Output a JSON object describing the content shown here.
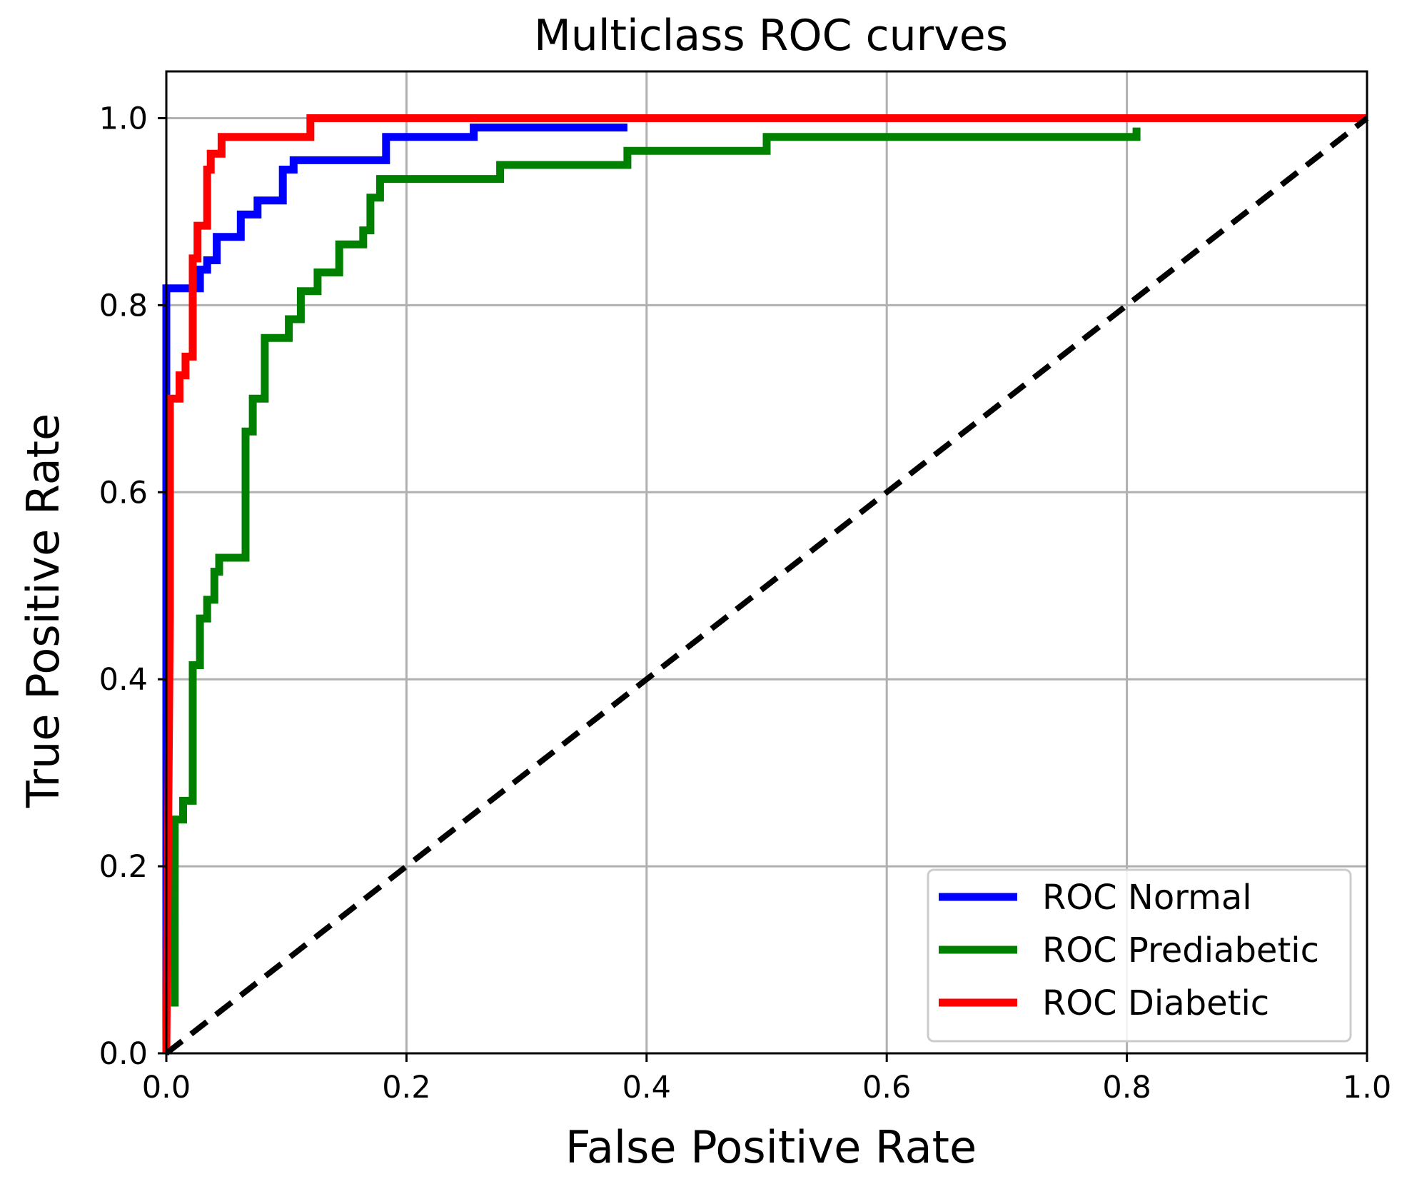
{
  "chart_data": {
    "type": "line",
    "title": "Multiclass ROC curves",
    "xlabel": "False Positive Rate",
    "ylabel": "True Positive Rate",
    "xlim": [
      0.0,
      1.0
    ],
    "ylim": [
      0.0,
      1.05
    ],
    "grid": true,
    "legend_position": "lower-right",
    "x_ticks": [
      0.0,
      0.2,
      0.4,
      0.6,
      0.8,
      1.0
    ],
    "x_tick_labels": [
      "0.0",
      "0.2",
      "0.4",
      "0.6",
      "0.8",
      "1.0"
    ],
    "y_ticks": [
      0.0,
      0.2,
      0.4,
      0.6,
      0.8,
      1.0
    ],
    "y_tick_labels": [
      "0.0",
      "0.2",
      "0.4",
      "0.6",
      "0.8",
      "1.0"
    ],
    "series": [
      {
        "name": "ROC Normal",
        "color": "#0000ff",
        "points": [
          [
            0.0,
            0.0
          ],
          [
            0.0,
            0.818
          ],
          [
            0.028,
            0.818
          ],
          [
            0.028,
            0.838
          ],
          [
            0.034,
            0.838
          ],
          [
            0.034,
            0.848
          ],
          [
            0.042,
            0.848
          ],
          [
            0.042,
            0.873
          ],
          [
            0.062,
            0.873
          ],
          [
            0.062,
            0.897
          ],
          [
            0.076,
            0.897
          ],
          [
            0.076,
            0.912
          ],
          [
            0.097,
            0.912
          ],
          [
            0.097,
            0.945
          ],
          [
            0.106,
            0.945
          ],
          [
            0.106,
            0.955
          ],
          [
            0.183,
            0.955
          ],
          [
            0.183,
            0.98
          ],
          [
            0.256,
            0.98
          ],
          [
            0.256,
            0.99
          ],
          [
            0.384,
            0.99
          ]
        ]
      },
      {
        "name": "ROC Prediabetic",
        "color": "#008000",
        "points": [
          [
            0.007,
            0.05
          ],
          [
            0.007,
            0.25
          ],
          [
            0.014,
            0.25
          ],
          [
            0.014,
            0.27
          ],
          [
            0.022,
            0.27
          ],
          [
            0.022,
            0.415
          ],
          [
            0.028,
            0.415
          ],
          [
            0.028,
            0.465
          ],
          [
            0.034,
            0.465
          ],
          [
            0.034,
            0.485
          ],
          [
            0.04,
            0.485
          ],
          [
            0.04,
            0.515
          ],
          [
            0.044,
            0.515
          ],
          [
            0.044,
            0.53
          ],
          [
            0.066,
            0.53
          ],
          [
            0.066,
            0.665
          ],
          [
            0.072,
            0.665
          ],
          [
            0.072,
            0.7
          ],
          [
            0.082,
            0.7
          ],
          [
            0.082,
            0.765
          ],
          [
            0.102,
            0.765
          ],
          [
            0.102,
            0.785
          ],
          [
            0.112,
            0.785
          ],
          [
            0.112,
            0.815
          ],
          [
            0.126,
            0.815
          ],
          [
            0.126,
            0.835
          ],
          [
            0.144,
            0.835
          ],
          [
            0.144,
            0.865
          ],
          [
            0.164,
            0.865
          ],
          [
            0.164,
            0.88
          ],
          [
            0.17,
            0.88
          ],
          [
            0.17,
            0.915
          ],
          [
            0.178,
            0.915
          ],
          [
            0.178,
            0.935
          ],
          [
            0.278,
            0.935
          ],
          [
            0.278,
            0.95
          ],
          [
            0.384,
            0.95
          ],
          [
            0.384,
            0.965
          ],
          [
            0.5,
            0.965
          ],
          [
            0.5,
            0.98
          ],
          [
            0.808,
            0.98
          ],
          [
            0.808,
            0.99
          ]
        ]
      },
      {
        "name": "ROC Diabetic",
        "color": "#ff0000",
        "points": [
          [
            0.0,
            0.0
          ],
          [
            0.003,
            0.47
          ],
          [
            0.003,
            0.7
          ],
          [
            0.011,
            0.7
          ],
          [
            0.011,
            0.725
          ],
          [
            0.016,
            0.725
          ],
          [
            0.016,
            0.745
          ],
          [
            0.022,
            0.745
          ],
          [
            0.022,
            0.85
          ],
          [
            0.026,
            0.85
          ],
          [
            0.026,
            0.885
          ],
          [
            0.034,
            0.885
          ],
          [
            0.034,
            0.945
          ],
          [
            0.037,
            0.945
          ],
          [
            0.037,
            0.962
          ],
          [
            0.046,
            0.962
          ],
          [
            0.046,
            0.98
          ],
          [
            0.12,
            0.98
          ],
          [
            0.12,
            1.0
          ],
          [
            1.0,
            1.0
          ]
        ]
      }
    ],
    "reference_line": {
      "name": "chance",
      "color": "#000000",
      "style": "dashed",
      "points": [
        [
          0.0,
          0.0
        ],
        [
          1.0,
          1.0
        ]
      ]
    }
  }
}
